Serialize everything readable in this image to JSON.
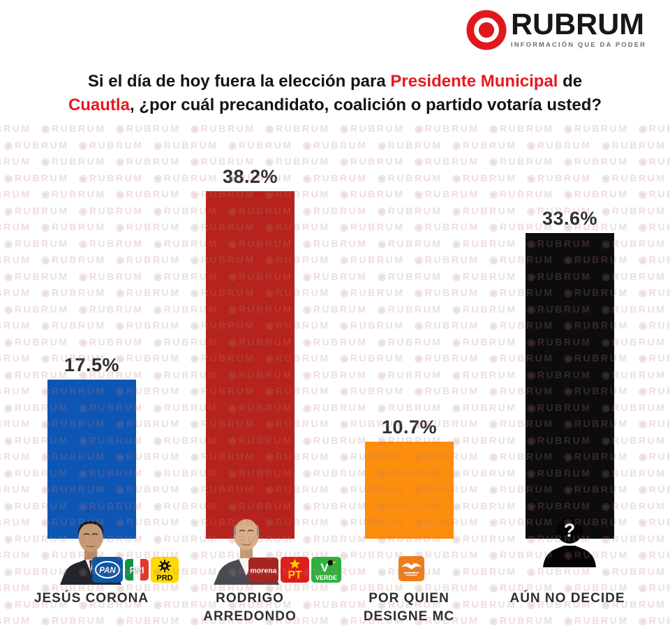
{
  "brand": {
    "name": "RUBRUM",
    "tagline": "INFORMACIÓN QUE DA PODER",
    "logo_color": "#e0181e"
  },
  "title": {
    "l1a": "Si el día de hoy fuera la elección para ",
    "l1b": "Presidente Municipal",
    "l1c": " de",
    "l2a": "Cuautla",
    "l2b": ", ¿por cuál precandidato, coalición o partido votaría usted?",
    "highlight_color": "#e8191f"
  },
  "watermark": {
    "icon": "◉",
    "text": "RUBRUM"
  },
  "chart_data": {
    "type": "bar",
    "title": "Si el día de hoy fuera la elección para Presidente Municipal de Cuautla, ¿por cuál precandidato, coalición o partido votaría usted?",
    "categories": [
      "JESÚS CORONA",
      "RODRIGO ARREDONDO",
      "POR QUIEN DESIGNE MC",
      "AÚN NO DECIDE"
    ],
    "values": [
      17.5,
      38.2,
      10.7,
      33.6
    ],
    "value_labels": [
      "17.5%",
      "38.2%",
      "10.7%",
      "33.6%"
    ],
    "unit": "%",
    "bar_colors": [
      "#0d56b3",
      "#b5231c",
      "#fc8d0d",
      "#0c0c0c"
    ],
    "ylim": [
      0,
      40
    ],
    "grid": false,
    "legend": false
  },
  "bars": [
    {
      "name_lines": [
        "JESÚS CORONA"
      ],
      "value_label": "17.5%",
      "parties": [
        "PAN",
        "PRI",
        "PRD"
      ]
    },
    {
      "name_lines": [
        "RODRIGO",
        "ARREDONDO"
      ],
      "value_label": "38.2%",
      "parties": [
        "MORENA",
        "PT",
        "VERDE"
      ]
    },
    {
      "name_lines": [
        "POR QUIEN",
        "DESIGNE MC"
      ],
      "value_label": "10.7%",
      "parties": [
        "MC"
      ]
    },
    {
      "name_lines": [
        "AÚN NO DECIDE"
      ],
      "value_label": "33.6%",
      "parties": [],
      "avatar_glyph": "?"
    }
  ],
  "party_logos": {
    "PAN": {
      "label": "PAN",
      "bg": "#0b57a4"
    },
    "PRI": {
      "label": "PRI",
      "colors": [
        "#0f9447",
        "#ffffff",
        "#e03a2f"
      ]
    },
    "PRD": {
      "label": "PRD",
      "bg": "#ffd900"
    },
    "MORENA": {
      "label": "morena",
      "bg": "#a52521"
    },
    "PT": {
      "label": "PT",
      "bg": "#dd1f19"
    },
    "VERDE": {
      "label": "VERDE",
      "monogram": "V",
      "bg": "#2eb13f"
    },
    "MC": {
      "label": "MC",
      "bg": "#ef7d1b"
    }
  }
}
